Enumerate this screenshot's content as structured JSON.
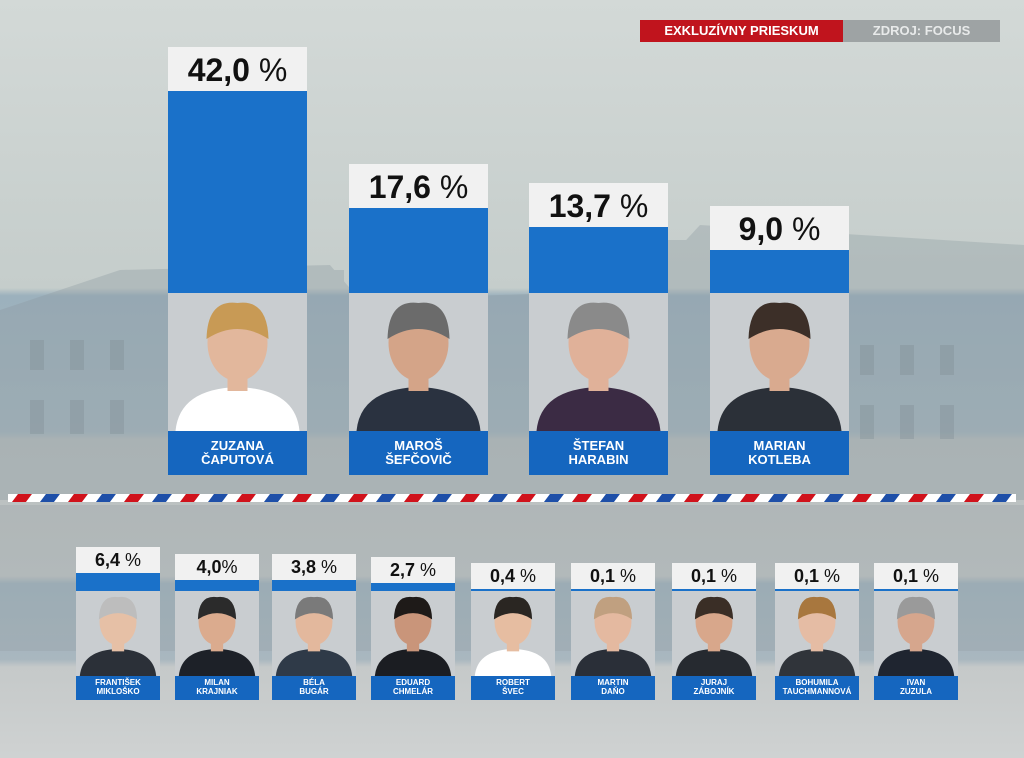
{
  "header": {
    "badge_label": "EXKLUZÍVNY PRIESKUM",
    "source_label": "ZDROJ: FOCUS"
  },
  "colors": {
    "bar": "#1a71c9",
    "name_box": "#1566bf",
    "badge": "#c0141d",
    "flag_red": "#d0121b",
    "flag_blue": "#1e4fa8"
  },
  "chart_data": {
    "type": "bar",
    "title": "",
    "unit": "%",
    "ylim": [
      0,
      42.0
    ],
    "series": [
      {
        "values": [
          42.0,
          17.6,
          13.7,
          9.0,
          6.4,
          4.0,
          3.8,
          2.7,
          0.4,
          0.1,
          0.1,
          0.1,
          0.1
        ],
        "labels": [
          "42,0",
          "17,6",
          "13,7",
          "9,0",
          "6,4",
          "4,0",
          "3,8",
          "2,7",
          "0,4",
          "0,1",
          "0,1",
          "0,1",
          "0,1"
        ]
      }
    ],
    "candidates": [
      {
        "first": "ZUZANA",
        "last": "ČAPUTOVÁ",
        "value": 42.0,
        "label": "42,0"
      },
      {
        "first": "MAROŠ",
        "last": "ŠEFČOVIČ",
        "value": 17.6,
        "label": "17,6"
      },
      {
        "first": "ŠTEFAN",
        "last": "HARABIN",
        "value": 13.7,
        "label": "13,7"
      },
      {
        "first": "MARIAN",
        "last": "KOTLEBA",
        "value": 9.0,
        "label": "9,0"
      },
      {
        "first": "FRANTIŠEK",
        "last": "MIKLOŠKO",
        "value": 6.4,
        "label": "6,4"
      },
      {
        "first": "MILAN",
        "last": "KRAJNIAK",
        "value": 4.0,
        "label": "4,0"
      },
      {
        "first": "BÉLA",
        "last": "BUGÁR",
        "value": 3.8,
        "label": "3,8"
      },
      {
        "first": "EDUARD",
        "last": "CHMELÁR",
        "value": 2.7,
        "label": "2,7"
      },
      {
        "first": "ROBERT",
        "last": "ŠVEC",
        "value": 0.4,
        "label": "0,4"
      },
      {
        "first": "MARTIN",
        "last": "DAŇO",
        "value": 0.1,
        "label": "0,1"
      },
      {
        "first": "JURAJ",
        "last": "ZÁBOJNÍK",
        "value": 0.1,
        "label": "0,1"
      },
      {
        "first": "BOHUMILA",
        "last": "TAUCHMANNOVÁ",
        "value": 0.1,
        "label": "0,1"
      },
      {
        "first": "IVAN",
        "last": "ZUZULA",
        "value": 0.1,
        "label": "0,1"
      }
    ],
    "legend": "none",
    "grid": false
  }
}
